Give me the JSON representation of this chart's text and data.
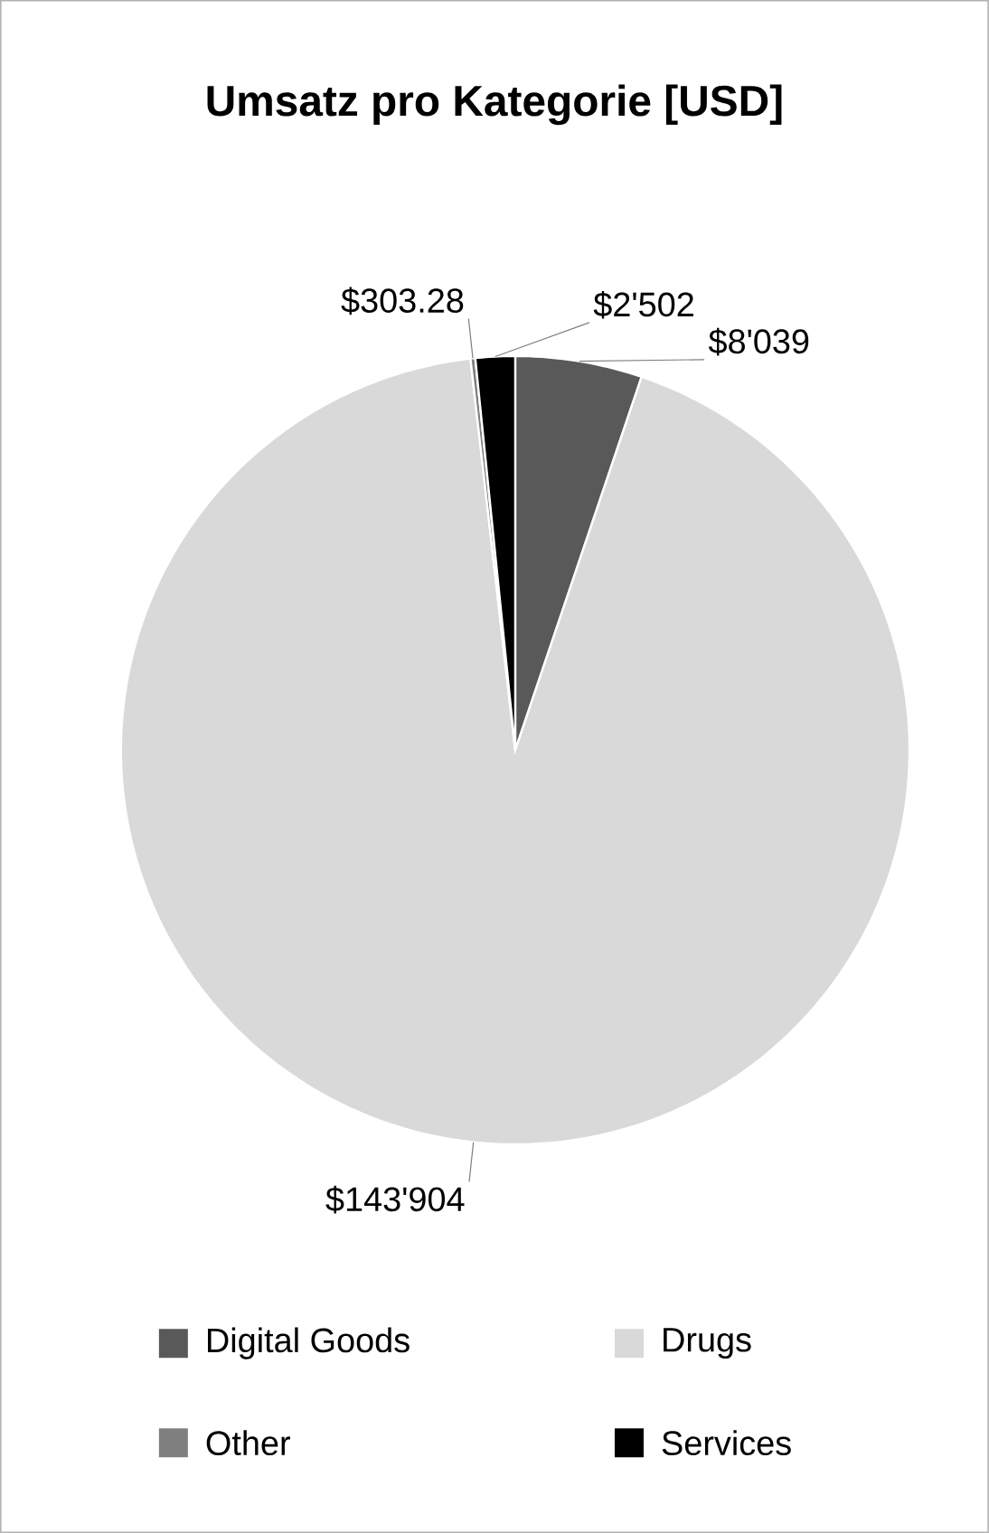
{
  "chart_data": {
    "type": "pie",
    "title": "Umsatz pro Kategorie [USD]",
    "categories": [
      "Digital Goods",
      "Drugs",
      "Other",
      "Services"
    ],
    "values": [
      8039,
      143904,
      303.28,
      2502
    ],
    "value_labels": [
      "$8'039",
      "$143'904",
      "$303.28",
      "$2'502"
    ],
    "colors": [
      "#595959",
      "#d9d9d9",
      "#7f7f7f",
      "#000000"
    ],
    "legend": "bottom"
  }
}
